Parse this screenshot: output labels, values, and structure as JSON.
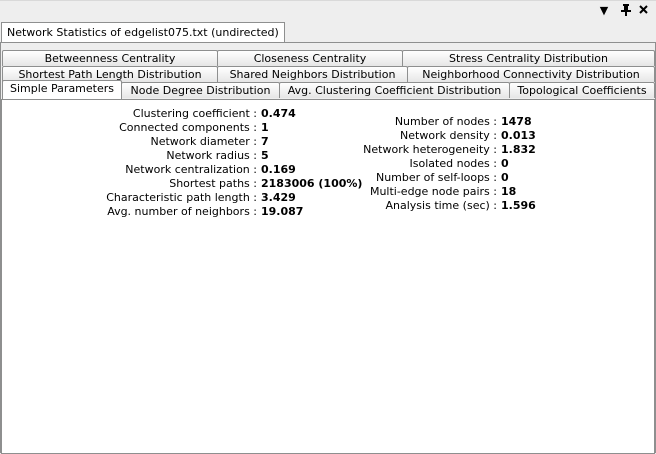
{
  "window": {
    "title": "Network Statistics of edgelist075.txt (undirected)",
    "controls": {
      "menu_icon": "▼",
      "pin_icon": "📌",
      "close_icon": "✖"
    }
  },
  "tabs_row1": [
    "Betweenness Centrality",
    "Closeness Centrality",
    "Stress Centrality Distribution"
  ],
  "tabs_row2": [
    "Shortest Path Length Distribution",
    "Shared Neighbors Distribution",
    "Neighborhood Connectivity Distribution"
  ],
  "tabs_row3": [
    "Simple Parameters",
    "Node Degree Distribution",
    "Avg. Clustering Coefficient Distribution",
    "Topological Coefficients"
  ],
  "selected_tab": "Simple Parameters",
  "left_params": [
    {
      "label": "Clustering coefficient :",
      "value": "0.474"
    },
    {
      "label": "Connected components :",
      "value": "1"
    },
    {
      "label": "Network diameter :",
      "value": "7"
    },
    {
      "label": "Network radius :",
      "value": "5"
    },
    {
      "label": "Network centralization :",
      "value": "0.169"
    },
    {
      "label": "Shortest paths :",
      "value": "2183006 (100%)"
    },
    {
      "label": "Characteristic path length :",
      "value": "3.429"
    },
    {
      "label": "Avg. number of neighbors :",
      "value": "19.087"
    }
  ],
  "right_params": [
    {
      "label": "Number of nodes :",
      "value": "1478"
    },
    {
      "label": "Network density :",
      "value": "0.013"
    },
    {
      "label": "Network heterogeneity :",
      "value": "1.832"
    },
    {
      "label": "Isolated nodes :",
      "value": "0"
    },
    {
      "label": "Number of self-loops :",
      "value": "0"
    },
    {
      "label": "Multi-edge node pairs :",
      "value": "18"
    },
    {
      "label": "Analysis time (sec) :",
      "value": "1.596"
    }
  ]
}
